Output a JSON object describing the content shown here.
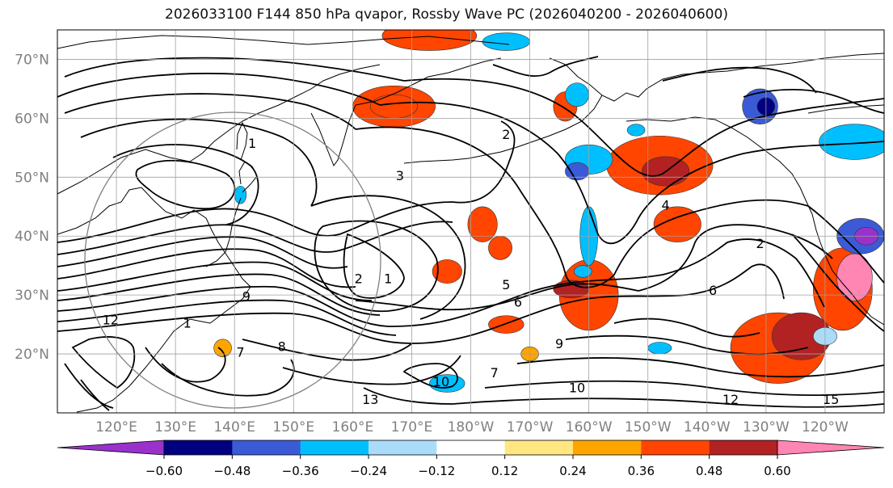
{
  "title": "2026033100 F144 850 hPa qvapor, Rossby Wave PC (2026040200 - 2026040600)",
  "map": {
    "lat_range": [
      10,
      75
    ],
    "lon_range": [
      110,
      250
    ],
    "lat_ticks": [
      {
        "value": 20,
        "label": "20°N"
      },
      {
        "value": 30,
        "label": "30°N"
      },
      {
        "value": 40,
        "label": "40°N"
      },
      {
        "value": 50,
        "label": "50°N"
      },
      {
        "value": 60,
        "label": "60°N"
      },
      {
        "value": 70,
        "label": "70°N"
      }
    ],
    "lon_ticks": [
      {
        "value": 120,
        "label": "120°E"
      },
      {
        "value": 130,
        "label": "130°E"
      },
      {
        "value": 140,
        "label": "140°E"
      },
      {
        "value": 150,
        "label": "150°E"
      },
      {
        "value": 160,
        "label": "160°E"
      },
      {
        "value": 170,
        "label": "170°E"
      },
      {
        "value": 180,
        "label": "180°W"
      },
      {
        "value": 190,
        "label": "170°W"
      },
      {
        "value": 200,
        "label": "160°W"
      },
      {
        "value": 210,
        "label": "150°W"
      },
      {
        "value": 220,
        "label": "140°W"
      },
      {
        "value": 230,
        "label": "130°W"
      },
      {
        "value": 240,
        "label": "120°W"
      }
    ],
    "contour_labels": [
      {
        "text": "1",
        "lon": 132,
        "lat": 24.5
      },
      {
        "text": "12",
        "lon": 119,
        "lat": 25
      },
      {
        "text": "2",
        "lon": 161,
        "lat": 32
      },
      {
        "text": "9",
        "lon": 142,
        "lat": 29
      },
      {
        "text": "8",
        "lon": 148,
        "lat": 20.5
      },
      {
        "text": "7",
        "lon": 141,
        "lat": 19.5
      },
      {
        "text": "1",
        "lon": 166,
        "lat": 32
      },
      {
        "text": "10",
        "lon": 175,
        "lat": 14.5
      },
      {
        "text": "13",
        "lon": 163,
        "lat": 11.5
      },
      {
        "text": "6",
        "lon": 188,
        "lat": 28
      },
      {
        "text": "5",
        "lon": 186,
        "lat": 31
      },
      {
        "text": "7",
        "lon": 184,
        "lat": 16
      },
      {
        "text": "9",
        "lon": 195,
        "lat": 21
      },
      {
        "text": "6",
        "lon": 221,
        "lat": 30
      },
      {
        "text": "4",
        "lon": 213,
        "lat": 44.5
      },
      {
        "text": "2",
        "lon": 229,
        "lat": 38
      },
      {
        "text": "2",
        "lon": 186,
        "lat": 56.5
      },
      {
        "text": "3",
        "lon": 168,
        "lat": 49.5
      },
      {
        "text": "1",
        "lon": 143,
        "lat": 55
      },
      {
        "text": "12",
        "lon": 224,
        "lat": 11.5
      },
      {
        "text": "15",
        "lon": 241,
        "lat": 11.5
      },
      {
        "text": "10",
        "lon": 198,
        "lat": 13.5
      }
    ],
    "shading": [
      {
        "lon": 167,
        "lat": 62,
        "rx": 7,
        "ry": 3.5,
        "value": 0.4
      },
      {
        "lon": 167,
        "lat": 62,
        "rx": 4,
        "ry": 2,
        "value": 0.45
      },
      {
        "lon": 173,
        "lat": 74,
        "rx": 8,
        "ry": 2.5,
        "value": 0.38
      },
      {
        "lon": 212,
        "lat": 52,
        "rx": 9,
        "ry": 5,
        "value": 0.38
      },
      {
        "lon": 213,
        "lat": 51,
        "rx": 4,
        "ry": 2.5,
        "value": 0.5
      },
      {
        "lon": 215,
        "lat": 42,
        "rx": 4,
        "ry": 3,
        "value": 0.38
      },
      {
        "lon": 196,
        "lat": 62,
        "rx": 2,
        "ry": 2.5,
        "value": 0.38
      },
      {
        "lon": 182,
        "lat": 42,
        "rx": 2.5,
        "ry": 3,
        "value": 0.38
      },
      {
        "lon": 185,
        "lat": 38,
        "rx": 2,
        "ry": 2,
        "value": 0.36
      },
      {
        "lon": 176,
        "lat": 34,
        "rx": 2.5,
        "ry": 2,
        "value": 0.36
      },
      {
        "lon": 200,
        "lat": 30,
        "rx": 5,
        "ry": 6,
        "value": 0.38
      },
      {
        "lon": 197,
        "lat": 31,
        "rx": 3,
        "ry": 1.5,
        "value": 0.5
      },
      {
        "lon": 186,
        "lat": 25,
        "rx": 3,
        "ry": 1.5,
        "value": 0.36
      },
      {
        "lon": 232,
        "lat": 21,
        "rx": 8,
        "ry": 6,
        "value": 0.38
      },
      {
        "lon": 236,
        "lat": 23,
        "rx": 5,
        "ry": 4,
        "value": 0.5
      },
      {
        "lon": 243,
        "lat": 31,
        "rx": 5,
        "ry": 7,
        "value": 0.38
      },
      {
        "lon": 245,
        "lat": 33,
        "rx": 3,
        "ry": 4,
        "value": 0.62
      },
      {
        "lon": 138,
        "lat": 21,
        "rx": 1.5,
        "ry": 1.5,
        "value": 0.3
      },
      {
        "lon": 190,
        "lat": 20,
        "rx": 1.5,
        "ry": 1.2,
        "value": 0.3
      },
      {
        "lon": 200,
        "lat": 53,
        "rx": 4,
        "ry": 2.5,
        "value": -0.3
      },
      {
        "lon": 198,
        "lat": 51,
        "rx": 2,
        "ry": 1.5,
        "value": -0.4
      },
      {
        "lon": 200,
        "lat": 40,
        "rx": 1.5,
        "ry": 5,
        "value": -0.3
      },
      {
        "lon": 186,
        "lat": 73,
        "rx": 4,
        "ry": 1.5,
        "value": -0.3
      },
      {
        "lon": 198,
        "lat": 64,
        "rx": 2,
        "ry": 2,
        "value": -0.3
      },
      {
        "lon": 229,
        "lat": 62,
        "rx": 3,
        "ry": 3,
        "value": -0.4
      },
      {
        "lon": 230,
        "lat": 62,
        "rx": 1.5,
        "ry": 1.5,
        "value": -0.5
      },
      {
        "lon": 245,
        "lat": 56,
        "rx": 6,
        "ry": 3,
        "value": -0.3
      },
      {
        "lon": 246,
        "lat": 40,
        "rx": 4,
        "ry": 3,
        "value": -0.4
      },
      {
        "lon": 247,
        "lat": 40,
        "rx": 2,
        "ry": 1.5,
        "value": -0.62
      },
      {
        "lon": 176,
        "lat": 15,
        "rx": 3,
        "ry": 1.5,
        "value": -0.35
      },
      {
        "lon": 199,
        "lat": 34,
        "rx": 1.5,
        "ry": 1,
        "value": -0.3
      },
      {
        "lon": 240,
        "lat": 23,
        "rx": 2,
        "ry": 1.5,
        "value": -0.2
      },
      {
        "lon": 212,
        "lat": 21,
        "rx": 2,
        "ry": 1,
        "value": -0.3
      },
      {
        "lon": 141,
        "lat": 47,
        "rx": 1,
        "ry": 1.5,
        "value": -0.3
      },
      {
        "lon": 208,
        "lat": 58,
        "rx": 1.5,
        "ry": 1,
        "value": -0.3
      }
    ]
  },
  "colorbar": {
    "ticks": [
      {
        "value": -0.6,
        "label": "−0.60"
      },
      {
        "value": -0.48,
        "label": "−0.48"
      },
      {
        "value": -0.36,
        "label": "−0.36"
      },
      {
        "value": -0.24,
        "label": "−0.24"
      },
      {
        "value": -0.12,
        "label": "−0.12"
      },
      {
        "value": 0.12,
        "label": "0.12"
      },
      {
        "value": 0.24,
        "label": "0.24"
      },
      {
        "value": 0.36,
        "label": "0.36"
      },
      {
        "value": 0.48,
        "label": "0.48"
      },
      {
        "value": 0.6,
        "label": "0.60"
      }
    ],
    "levels": [
      -0.6,
      -0.48,
      -0.36,
      -0.24,
      -0.12,
      0.12,
      0.24,
      0.36,
      0.48,
      0.6
    ],
    "colors": [
      "#9932cc",
      "#000080",
      "#3b5bd6",
      "#00bfff",
      "#aadcf8",
      "#ffffff",
      "#ffe680",
      "#ffa500",
      "#ff4500",
      "#b22222",
      "#ff85b3"
    ],
    "extend": "both"
  },
  "colors": {
    "grid": "#a0a0a0",
    "contour": "#000000",
    "coast": "#000000",
    "tick_label": "#808080",
    "circle": "#808080"
  }
}
